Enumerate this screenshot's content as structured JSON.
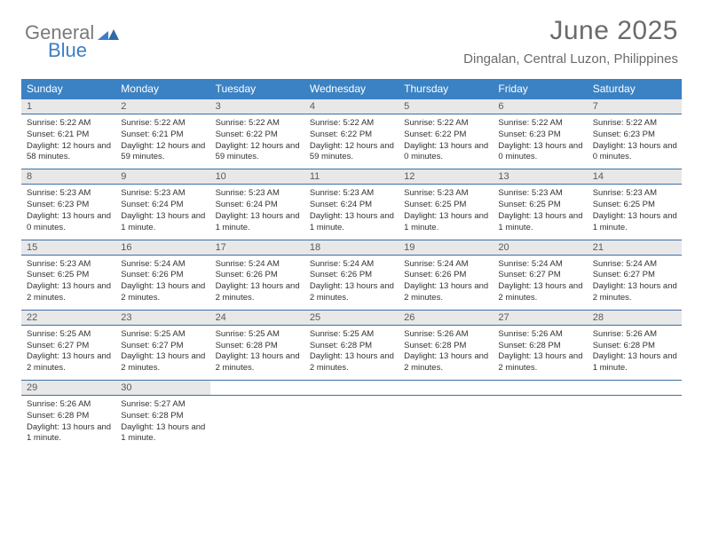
{
  "logo": {
    "gray": "General",
    "blue": "Blue"
  },
  "title": "June 2025",
  "location": "Dingalan, Central Luzon, Philippines",
  "colors": {
    "header_bg": "#3b82c4",
    "header_text": "#ffffff",
    "date_bg": "#e8e8e8",
    "date_text": "#5a5a5a",
    "body_text": "#333333",
    "divider": "#3b6fa8",
    "logo_gray": "#7a7a7a",
    "logo_blue": "#3b7fc4",
    "title_color": "#6b6b6b"
  },
  "typography": {
    "title_fontsize": 30,
    "location_fontsize": 15,
    "day_header_fontsize": 12,
    "date_fontsize": 11,
    "body_fontsize": 9.5
  },
  "layout": {
    "columns": 7,
    "cell_min_height": 78,
    "calendar_width": 744
  },
  "day_names": [
    "Sunday",
    "Monday",
    "Tuesday",
    "Wednesday",
    "Thursday",
    "Friday",
    "Saturday"
  ],
  "weeks": [
    [
      {
        "date": "1",
        "sunrise": "5:22 AM",
        "sunset": "6:21 PM",
        "daylight": "12 hours and 58 minutes."
      },
      {
        "date": "2",
        "sunrise": "5:22 AM",
        "sunset": "6:21 PM",
        "daylight": "12 hours and 59 minutes."
      },
      {
        "date": "3",
        "sunrise": "5:22 AM",
        "sunset": "6:22 PM",
        "daylight": "12 hours and 59 minutes."
      },
      {
        "date": "4",
        "sunrise": "5:22 AM",
        "sunset": "6:22 PM",
        "daylight": "12 hours and 59 minutes."
      },
      {
        "date": "5",
        "sunrise": "5:22 AM",
        "sunset": "6:22 PM",
        "daylight": "13 hours and 0 minutes."
      },
      {
        "date": "6",
        "sunrise": "5:22 AM",
        "sunset": "6:23 PM",
        "daylight": "13 hours and 0 minutes."
      },
      {
        "date": "7",
        "sunrise": "5:22 AM",
        "sunset": "6:23 PM",
        "daylight": "13 hours and 0 minutes."
      }
    ],
    [
      {
        "date": "8",
        "sunrise": "5:23 AM",
        "sunset": "6:23 PM",
        "daylight": "13 hours and 0 minutes."
      },
      {
        "date": "9",
        "sunrise": "5:23 AM",
        "sunset": "6:24 PM",
        "daylight": "13 hours and 1 minute."
      },
      {
        "date": "10",
        "sunrise": "5:23 AM",
        "sunset": "6:24 PM",
        "daylight": "13 hours and 1 minute."
      },
      {
        "date": "11",
        "sunrise": "5:23 AM",
        "sunset": "6:24 PM",
        "daylight": "13 hours and 1 minute."
      },
      {
        "date": "12",
        "sunrise": "5:23 AM",
        "sunset": "6:25 PM",
        "daylight": "13 hours and 1 minute."
      },
      {
        "date": "13",
        "sunrise": "5:23 AM",
        "sunset": "6:25 PM",
        "daylight": "13 hours and 1 minute."
      },
      {
        "date": "14",
        "sunrise": "5:23 AM",
        "sunset": "6:25 PM",
        "daylight": "13 hours and 1 minute."
      }
    ],
    [
      {
        "date": "15",
        "sunrise": "5:23 AM",
        "sunset": "6:25 PM",
        "daylight": "13 hours and 2 minutes."
      },
      {
        "date": "16",
        "sunrise": "5:24 AM",
        "sunset": "6:26 PM",
        "daylight": "13 hours and 2 minutes."
      },
      {
        "date": "17",
        "sunrise": "5:24 AM",
        "sunset": "6:26 PM",
        "daylight": "13 hours and 2 minutes."
      },
      {
        "date": "18",
        "sunrise": "5:24 AM",
        "sunset": "6:26 PM",
        "daylight": "13 hours and 2 minutes."
      },
      {
        "date": "19",
        "sunrise": "5:24 AM",
        "sunset": "6:26 PM",
        "daylight": "13 hours and 2 minutes."
      },
      {
        "date": "20",
        "sunrise": "5:24 AM",
        "sunset": "6:27 PM",
        "daylight": "13 hours and 2 minutes."
      },
      {
        "date": "21",
        "sunrise": "5:24 AM",
        "sunset": "6:27 PM",
        "daylight": "13 hours and 2 minutes."
      }
    ],
    [
      {
        "date": "22",
        "sunrise": "5:25 AM",
        "sunset": "6:27 PM",
        "daylight": "13 hours and 2 minutes."
      },
      {
        "date": "23",
        "sunrise": "5:25 AM",
        "sunset": "6:27 PM",
        "daylight": "13 hours and 2 minutes."
      },
      {
        "date": "24",
        "sunrise": "5:25 AM",
        "sunset": "6:28 PM",
        "daylight": "13 hours and 2 minutes."
      },
      {
        "date": "25",
        "sunrise": "5:25 AM",
        "sunset": "6:28 PM",
        "daylight": "13 hours and 2 minutes."
      },
      {
        "date": "26",
        "sunrise": "5:26 AM",
        "sunset": "6:28 PM",
        "daylight": "13 hours and 2 minutes."
      },
      {
        "date": "27",
        "sunrise": "5:26 AM",
        "sunset": "6:28 PM",
        "daylight": "13 hours and 2 minutes."
      },
      {
        "date": "28",
        "sunrise": "5:26 AM",
        "sunset": "6:28 PM",
        "daylight": "13 hours and 1 minute."
      }
    ],
    [
      {
        "date": "29",
        "sunrise": "5:26 AM",
        "sunset": "6:28 PM",
        "daylight": "13 hours and 1 minute."
      },
      {
        "date": "30",
        "sunrise": "5:27 AM",
        "sunset": "6:28 PM",
        "daylight": "13 hours and 1 minute."
      },
      null,
      null,
      null,
      null,
      null
    ]
  ],
  "labels": {
    "sunrise": "Sunrise:",
    "sunset": "Sunset:",
    "daylight": "Daylight:"
  }
}
